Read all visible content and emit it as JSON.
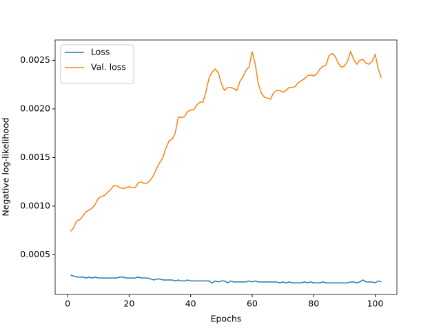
{
  "chart_data": {
    "type": "line",
    "xlabel": "Epochs",
    "ylabel": "Negative log-likelihood",
    "x": [
      1,
      2,
      3,
      4,
      5,
      6,
      7,
      8,
      9,
      10,
      11,
      12,
      13,
      14,
      15,
      16,
      17,
      18,
      19,
      20,
      21,
      22,
      23,
      24,
      25,
      26,
      27,
      28,
      29,
      30,
      31,
      32,
      33,
      34,
      35,
      36,
      37,
      38,
      39,
      40,
      41,
      42,
      43,
      44,
      45,
      46,
      47,
      48,
      49,
      50,
      51,
      52,
      53,
      54,
      55,
      56,
      57,
      58,
      59,
      60,
      61,
      62,
      63,
      64,
      65,
      66,
      67,
      68,
      69,
      70,
      71,
      72,
      73,
      74,
      75,
      76,
      77,
      78,
      79,
      80,
      81,
      82,
      83,
      84,
      85,
      86,
      87,
      88,
      89,
      90,
      91,
      92,
      93,
      94,
      95,
      96,
      97,
      98,
      99,
      100,
      101,
      102
    ],
    "series": [
      {
        "name": "Loss",
        "color": "#1f77b4",
        "values": [
          0.00029,
          0.00028,
          0.00027,
          0.00027,
          0.00027,
          0.00026,
          0.00027,
          0.00026,
          0.00027,
          0.00026,
          0.00026,
          0.00026,
          0.00026,
          0.00026,
          0.00026,
          0.00026,
          0.00027,
          0.00027,
          0.00026,
          0.00026,
          0.00026,
          0.00026,
          0.00027,
          0.00026,
          0.00026,
          0.00026,
          0.00025,
          0.00024,
          0.00025,
          0.00025,
          0.00024,
          0.00024,
          0.00024,
          0.00024,
          0.00023,
          0.00024,
          0.00023,
          0.00023,
          0.00024,
          0.00023,
          0.00023,
          0.00023,
          0.00023,
          0.00023,
          0.00023,
          0.00023,
          0.00021,
          0.00023,
          0.00022,
          0.00023,
          0.00023,
          0.00021,
          0.00023,
          0.00022,
          0.00022,
          0.00022,
          0.00022,
          0.00022,
          0.00023,
          0.00022,
          0.00023,
          0.00022,
          0.00022,
          0.00022,
          0.00022,
          0.00022,
          0.00022,
          0.00022,
          0.00021,
          0.00022,
          0.00021,
          0.00022,
          0.00021,
          0.00021,
          0.00021,
          0.00021,
          0.00022,
          0.00021,
          0.00022,
          0.00021,
          0.00021,
          0.00021,
          0.00022,
          0.00021,
          0.00021,
          0.00021,
          0.00021,
          0.00021,
          0.00021,
          0.00021,
          0.00021,
          0.00022,
          0.00022,
          0.00021,
          0.00022,
          0.00024,
          0.00022,
          0.00022,
          0.00022,
          0.00021,
          0.00023,
          0.00022
        ]
      },
      {
        "name": "Val. loss",
        "color": "#ff7f0e",
        "values": [
          0.00074,
          0.00078,
          0.00085,
          0.00086,
          0.0009,
          0.00094,
          0.00096,
          0.00098,
          0.00102,
          0.00108,
          0.0011,
          0.00111,
          0.00114,
          0.00117,
          0.00121,
          0.00121,
          0.00119,
          0.00118,
          0.00119,
          0.0012,
          0.00119,
          0.00119,
          0.00124,
          0.00125,
          0.00123,
          0.00124,
          0.00127,
          0.00132,
          0.00139,
          0.00145,
          0.0015,
          0.0016,
          0.00167,
          0.00169,
          0.00175,
          0.00192,
          0.00191,
          0.00192,
          0.00197,
          0.00199,
          0.00199,
          0.00204,
          0.00207,
          0.00207,
          0.00218,
          0.00232,
          0.00238,
          0.00241,
          0.00237,
          0.00226,
          0.00219,
          0.00222,
          0.00222,
          0.00221,
          0.00219,
          0.00228,
          0.00233,
          0.0024,
          0.00243,
          0.00259,
          0.00246,
          0.00226,
          0.00216,
          0.00212,
          0.00211,
          0.0021,
          0.00217,
          0.00219,
          0.00219,
          0.00217,
          0.00219,
          0.00222,
          0.00222,
          0.00223,
          0.00227,
          0.00229,
          0.00231,
          0.00234,
          0.00235,
          0.00234,
          0.00236,
          0.00241,
          0.00244,
          0.00245,
          0.00255,
          0.00257,
          0.00254,
          0.00247,
          0.00243,
          0.00244,
          0.00249,
          0.00259,
          0.00251,
          0.00246,
          0.0025,
          0.00251,
          0.00247,
          0.00246,
          0.00249,
          0.00256,
          0.00241,
          0.00232
        ]
      }
    ],
    "xlim": [
      -4.05,
      107.05
    ],
    "xticks": [
      0,
      20,
      40,
      60,
      80,
      100
    ],
    "ylim": [
      9.1e-05,
      0.002709
    ],
    "yticks": [
      0.0005,
      {
        "value": 0.001,
        "label": "0.0010"
      },
      {
        "value": 0.0015,
        "label": "0.0015"
      },
      {
        "value": 0.002,
        "label": "0.0020"
      },
      {
        "value": 0.0025,
        "label": "0.0025"
      }
    ],
    "legend": "upper left",
    "grid": false
  }
}
